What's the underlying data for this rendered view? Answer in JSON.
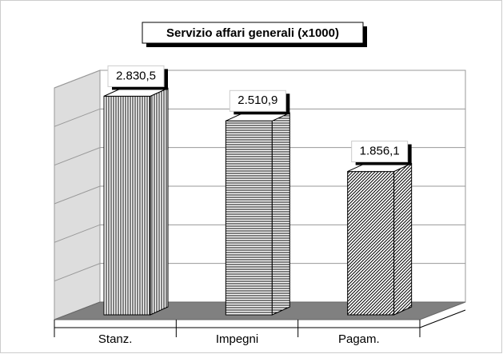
{
  "chart_data": {
    "type": "bar3d",
    "title": "Servizio affari generali (x1000)",
    "categories": [
      "Stanz.",
      "Impegni",
      "Pagam."
    ],
    "values": [
      2830.5,
      2510.9,
      1856.1
    ],
    "value_labels": [
      "2.830,5",
      "2.510,9",
      "1.856,1"
    ],
    "fill_patterns": [
      "vertical",
      "horizontal",
      "diagonal"
    ],
    "ylim": [
      0,
      3000
    ],
    "yticks": [
      0,
      500,
      1000,
      1500,
      2000,
      2500,
      3000
    ],
    "grid": true
  }
}
